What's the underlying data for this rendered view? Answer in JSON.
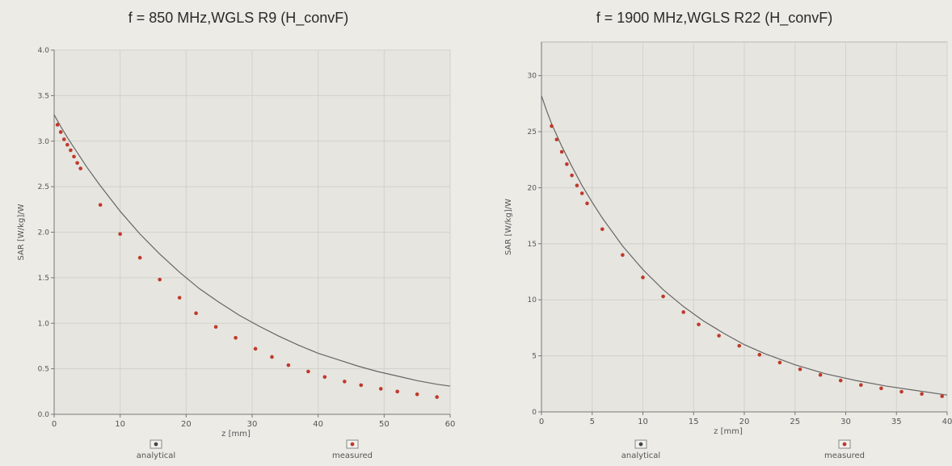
{
  "chart_data": [
    {
      "type": "line",
      "title": "f = 850 MHz,WGLS R9 (H_convF)",
      "xlabel": "z [mm]",
      "ylabel": "SAR [W/kg]/W",
      "xlim": [
        0,
        60
      ],
      "ylim": [
        0,
        4.0
      ],
      "xticks": [
        0,
        10,
        20,
        30,
        40,
        50,
        60
      ],
      "yticks": [
        "0.0",
        "0.5",
        "1.0",
        "1.5",
        "2.0",
        "2.5",
        "3.0",
        "3.5",
        "4.0"
      ],
      "grid": true,
      "legend_position": "bottom",
      "series": [
        {
          "name": "analytical",
          "color": "#666666",
          "x": [
            0,
            1,
            2,
            3,
            4,
            5,
            7,
            10,
            13,
            16,
            19,
            22,
            25,
            28,
            31,
            34,
            37,
            40,
            43,
            46,
            49,
            52,
            55,
            58,
            60
          ],
          "y": [
            3.29,
            3.16,
            3.04,
            2.93,
            2.82,
            2.71,
            2.51,
            2.23,
            1.98,
            1.76,
            1.56,
            1.38,
            1.23,
            1.09,
            0.97,
            0.86,
            0.76,
            0.67,
            0.6,
            0.53,
            0.47,
            0.42,
            0.37,
            0.33,
            0.31
          ]
        },
        {
          "name": "measured",
          "color": "#c0392b",
          "x": [
            0.5,
            1,
            1.5,
            2,
            2.5,
            3,
            3.5,
            4,
            7,
            10,
            13,
            16,
            19,
            21.5,
            24.5,
            27.5,
            30.5,
            33,
            35.5,
            38.5,
            41,
            44,
            46.5,
            49.5,
            52,
            55,
            58
          ],
          "y": [
            3.18,
            3.1,
            3.02,
            2.96,
            2.9,
            2.83,
            2.76,
            2.7,
            2.3,
            1.98,
            1.72,
            1.48,
            1.28,
            1.11,
            0.96,
            0.84,
            0.72,
            0.63,
            0.54,
            0.47,
            0.41,
            0.36,
            0.32,
            0.28,
            0.25,
            0.22,
            0.19
          ]
        }
      ]
    },
    {
      "type": "line",
      "title": "f = 1900 MHz,WGLS R22 (H_convF)",
      "xlabel": "z [mm]",
      "ylabel": "SAR [W/kg]/W",
      "xlim": [
        0,
        40
      ],
      "ylim": [
        0,
        33
      ],
      "xticks": [
        0,
        5,
        10,
        15,
        20,
        25,
        30,
        35,
        40
      ],
      "yticks": [
        "0",
        "5",
        "10",
        "15",
        "20",
        "25",
        "30"
      ],
      "grid": true,
      "legend_position": "bottom",
      "series": [
        {
          "name": "analytical",
          "color": "#666666",
          "x": [
            0,
            0.5,
            1,
            1.5,
            2,
            3,
            4,
            5,
            6,
            8,
            10,
            12,
            14,
            16,
            18,
            20,
            22,
            25,
            28,
            31,
            34,
            37,
            40
          ],
          "y": [
            28.2,
            26.9,
            25.7,
            24.7,
            23.7,
            21.9,
            20.2,
            18.7,
            17.3,
            14.8,
            12.7,
            10.9,
            9.4,
            8.1,
            7.0,
            6.0,
            5.2,
            4.2,
            3.4,
            2.8,
            2.3,
            1.9,
            1.5
          ]
        },
        {
          "name": "measured",
          "color": "#c0392b",
          "x": [
            1,
            1.5,
            2,
            2.5,
            3,
            3.5,
            4,
            4.5,
            6,
            8,
            10,
            12,
            14,
            15.5,
            17.5,
            19.5,
            21.5,
            23.5,
            25.5,
            27.5,
            29.5,
            31.5,
            33.5,
            35.5,
            37.5,
            39.5
          ],
          "y": [
            25.5,
            24.3,
            23.2,
            22.1,
            21.1,
            20.2,
            19.5,
            18.6,
            16.3,
            14.0,
            12.0,
            10.3,
            8.9,
            7.8,
            6.8,
            5.9,
            5.1,
            4.4,
            3.8,
            3.3,
            2.8,
            2.4,
            2.1,
            1.8,
            1.6,
            1.4
          ]
        }
      ]
    }
  ]
}
